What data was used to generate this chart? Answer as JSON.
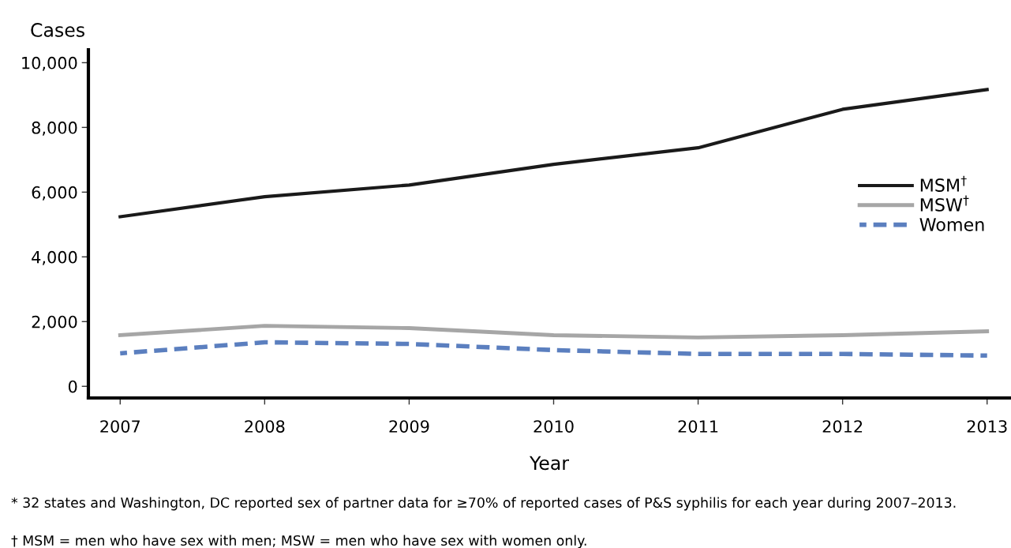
{
  "chart_data": {
    "type": "line",
    "xlabel": "Year",
    "ylabel": "Cases",
    "x": [
      2007,
      2008,
      2009,
      2010,
      2011,
      2012,
      2013
    ],
    "series": [
      {
        "name": "MSM$^{†}$",
        "color": "#1a1a1a",
        "line_style": "solid",
        "values": [
          5240,
          5860,
          6220,
          6860,
          7370,
          8560,
          9170
        ]
      },
      {
        "name": "MSW$^{†}$",
        "color": "#a6a6a6",
        "line_style": "solid",
        "values": [
          1580,
          1870,
          1800,
          1580,
          1510,
          1580,
          1700
        ]
      },
      {
        "name": "Women",
        "color": "#5b7fbf",
        "line_style": "dashed",
        "values": [
          1020,
          1360,
          1310,
          1120,
          1000,
          1000,
          950
        ]
      }
    ],
    "xlim": [
      2006.78,
      2013.16
    ],
    "xticks": [
      2007,
      2008,
      2009,
      2010,
      2011,
      2012,
      2013
    ],
    "ylim": [
      -360,
      10400
    ],
    "yticks": [
      0,
      {
        "value": 2000,
        "label": "2,000"
      },
      {
        "value": 4000,
        "label": "4,000"
      },
      {
        "value": 6000,
        "label": "6,000"
      },
      {
        "value": 8000,
        "label": "8,000"
      },
      {
        "value": 10000,
        "label": "10,000"
      }
    ],
    "grid": false,
    "legend": "right",
    "marker": "none",
    "annotations": [
      "* 32 states and Washington, DC reported sex of partner data for ≥70% of reported cases of P&S syphilis for each year during 2007–2013.",
      "† MSM = men who have sex with men; MSW = men who have sex with women only."
    ]
  }
}
